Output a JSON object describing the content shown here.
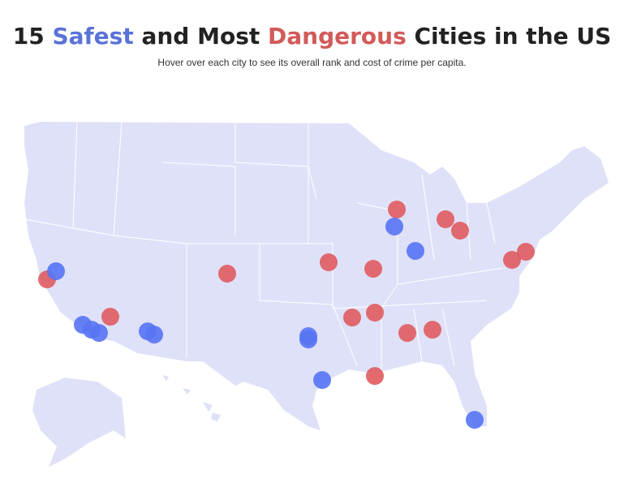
{
  "header": {
    "title_parts": [
      "15 ",
      "Safest",
      " and Most ",
      "Dangerous",
      " Cities in the US"
    ],
    "subtitle": "Hover over each city to see its overall rank and cost of crime per capita."
  }
}
